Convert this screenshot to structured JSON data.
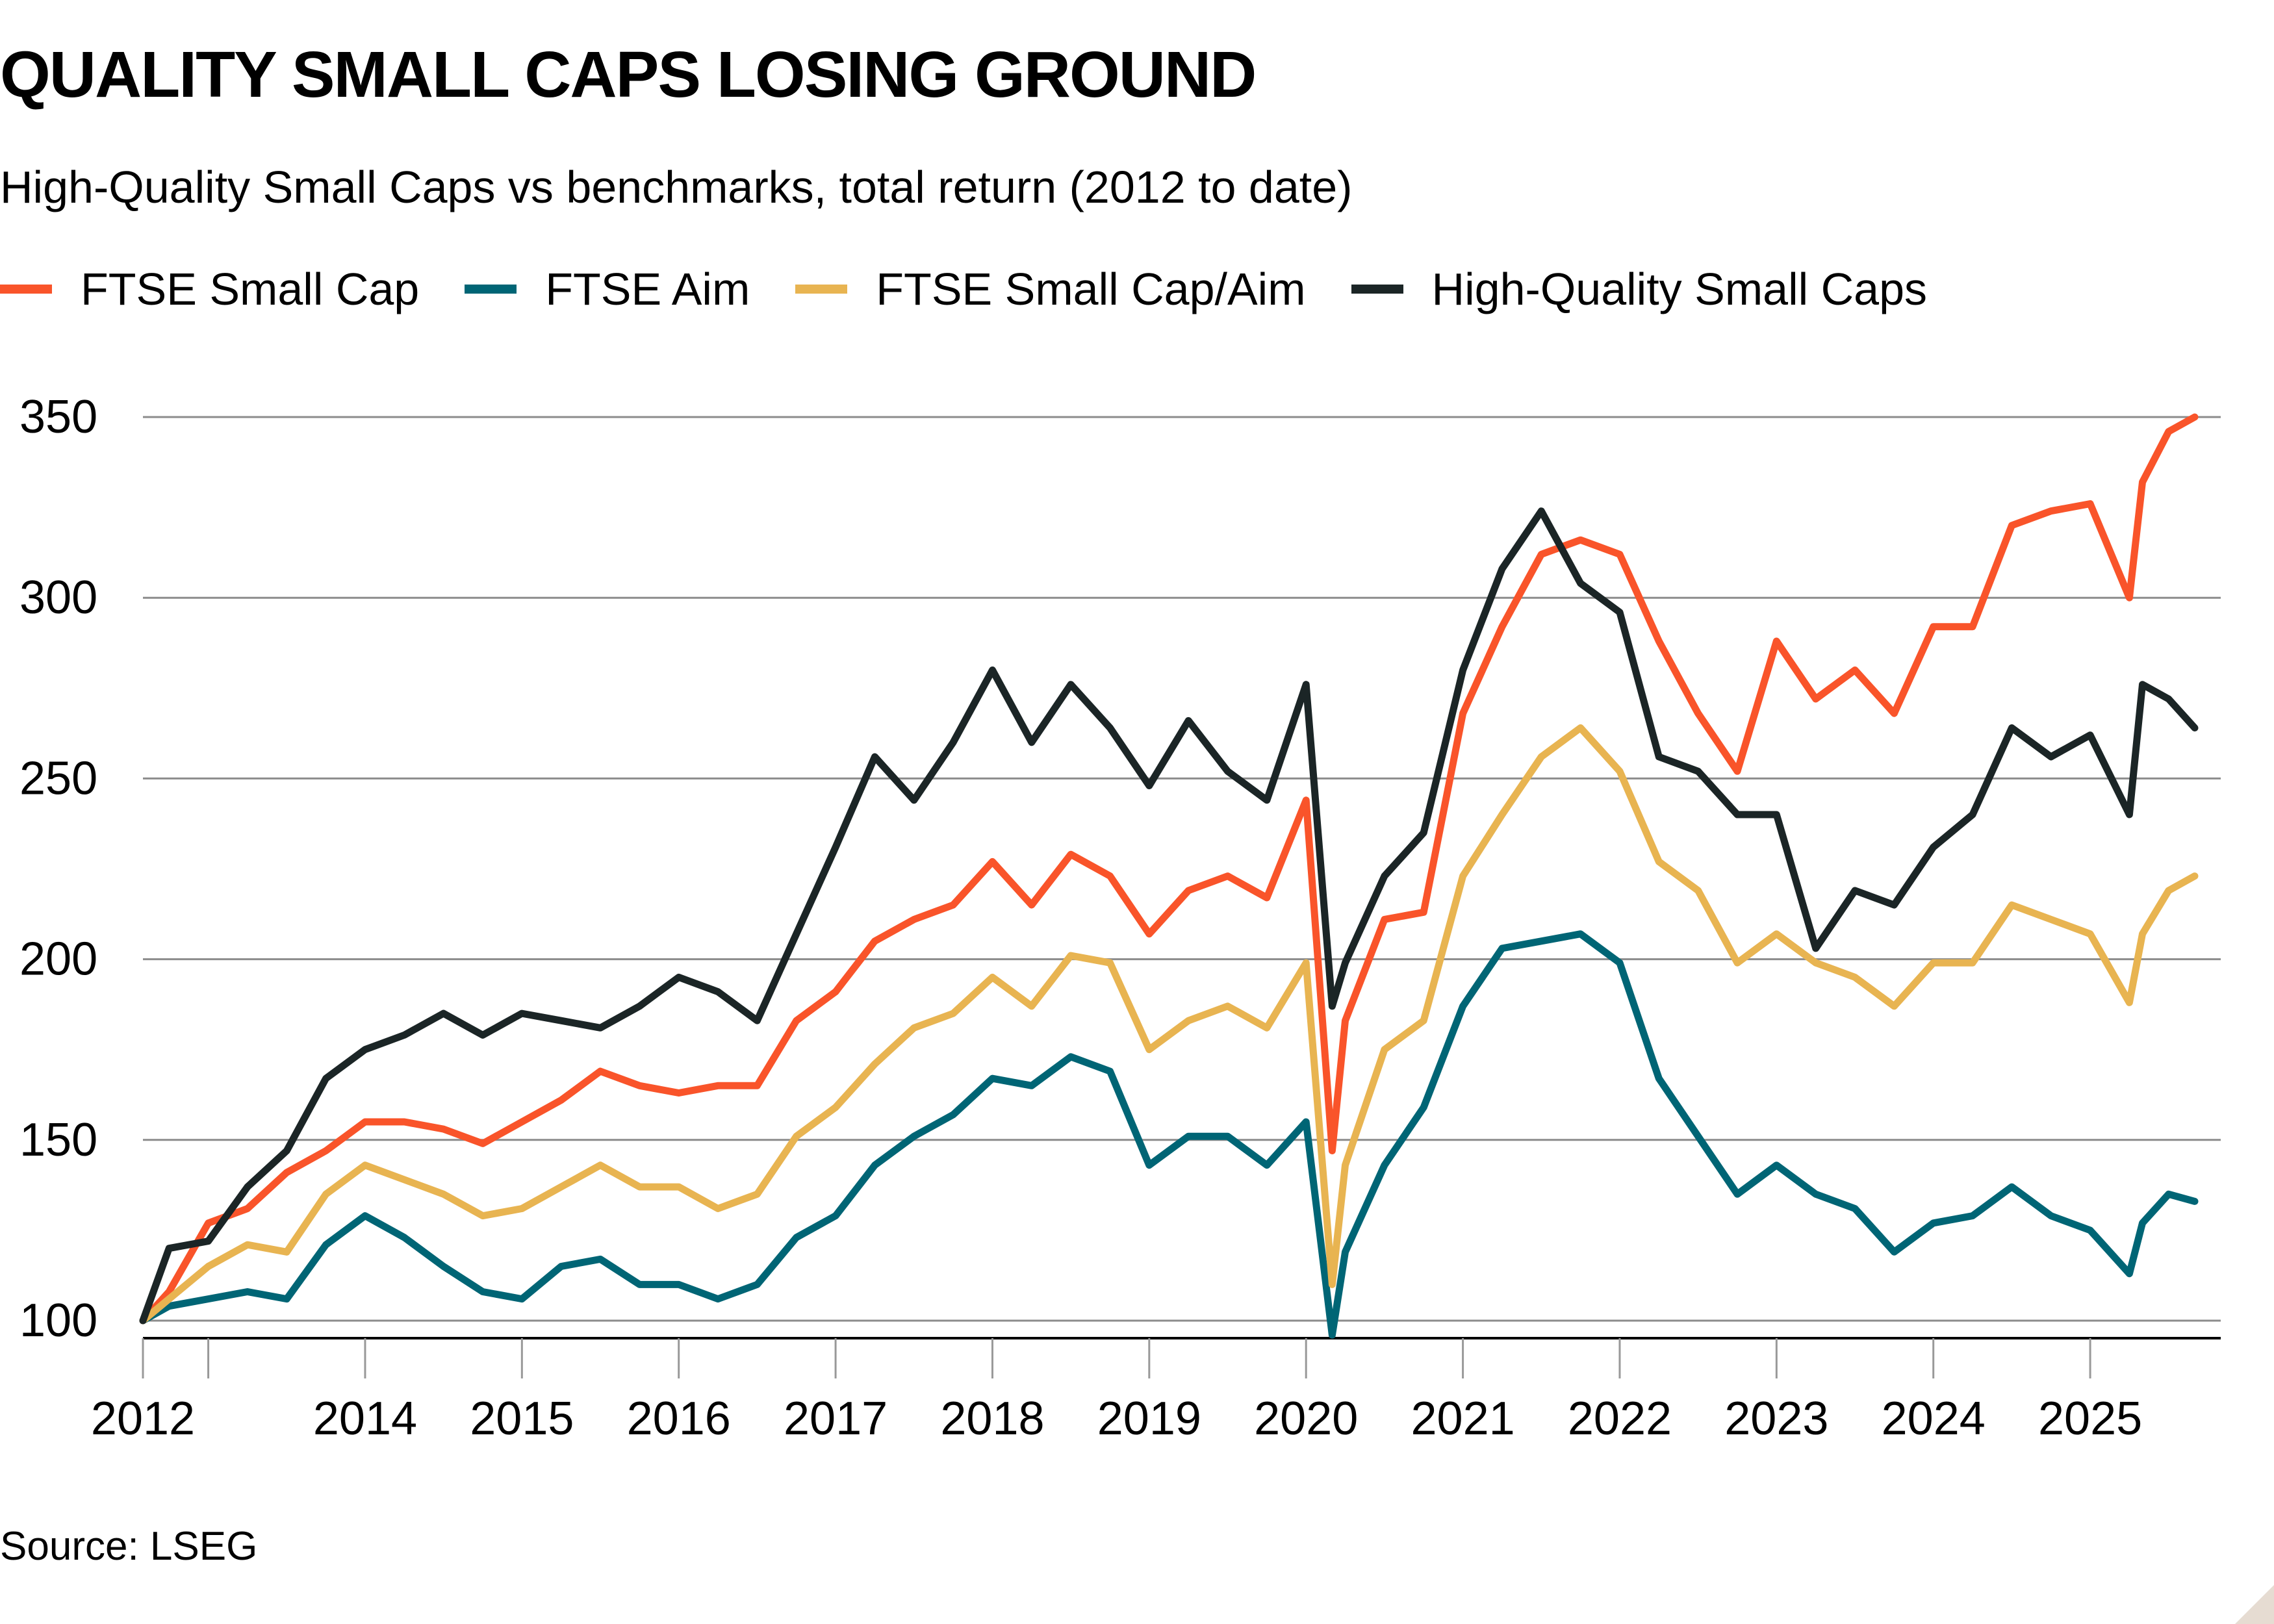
{
  "chart_data": {
    "type": "line",
    "title": "QUALITY SMALL CAPS LOSING GROUND",
    "subtitle": "High-Quality Small Caps vs benchmarks, total return (2012 to date)",
    "source": "Source: LSEG",
    "xlabel": "",
    "ylabel": "",
    "ylim": [
      100,
      350
    ],
    "yticks": [
      100,
      150,
      200,
      250,
      300,
      350
    ],
    "xticks": [
      {
        "date": "2012-08",
        "label": "2012"
      },
      {
        "date": "2013-01",
        "label": ""
      },
      {
        "date": "2014-01",
        "label": "2014"
      },
      {
        "date": "2015-01",
        "label": "2015"
      },
      {
        "date": "2016-01",
        "label": "2016"
      },
      {
        "date": "2017-01",
        "label": "2017"
      },
      {
        "date": "2018-01",
        "label": "2018"
      },
      {
        "date": "2019-01",
        "label": "2019"
      },
      {
        "date": "2020-01",
        "label": "2020"
      },
      {
        "date": "2021-01",
        "label": "2021"
      },
      {
        "date": "2022-01",
        "label": "2022"
      },
      {
        "date": "2023-01",
        "label": "2023"
      },
      {
        "date": "2024-01",
        "label": "2024"
      },
      {
        "date": "2025-01",
        "label": "2025"
      }
    ],
    "xlim": [
      "2012-08",
      "2025-09"
    ],
    "grid": true,
    "legend_position": "top",
    "dates": [
      "2012-08",
      "2012-10",
      "2013-01",
      "2013-04",
      "2013-07",
      "2013-10",
      "2014-01",
      "2014-04",
      "2014-07",
      "2014-10",
      "2015-01",
      "2015-04",
      "2015-07",
      "2015-10",
      "2016-01",
      "2016-04",
      "2016-07",
      "2016-10",
      "2017-01",
      "2017-04",
      "2017-07",
      "2017-10",
      "2018-01",
      "2018-04",
      "2018-07",
      "2018-10",
      "2019-01",
      "2019-04",
      "2019-07",
      "2019-10",
      "2020-01",
      "2020-03",
      "2020-04",
      "2020-07",
      "2020-10",
      "2021-01",
      "2021-04",
      "2021-07",
      "2021-10",
      "2022-01",
      "2022-04",
      "2022-07",
      "2022-10",
      "2023-01",
      "2023-04",
      "2023-07",
      "2023-10",
      "2024-01",
      "2024-04",
      "2024-07",
      "2024-10",
      "2025-01",
      "2025-04",
      "2025-05",
      "2025-07",
      "2025-09"
    ],
    "series": [
      {
        "name": "FTSE Small Cap",
        "color": "#f9542a",
        "values": [
          100,
          108,
          127,
          131,
          141,
          147,
          155,
          155,
          153,
          149,
          155,
          161,
          169,
          165,
          163,
          165,
          165,
          183,
          191,
          205,
          211,
          215,
          227,
          215,
          229,
          223,
          207,
          219,
          223,
          217,
          244,
          147,
          183,
          211,
          213,
          268,
          292,
          312,
          316,
          312,
          288,
          268,
          252,
          288,
          272,
          280,
          268,
          292,
          292,
          320,
          324,
          326,
          300,
          332,
          346,
          350
        ]
      },
      {
        "name": "FTSE Aim",
        "color": "#006575",
        "values": [
          100,
          104,
          106,
          108,
          106,
          121,
          129,
          123,
          115,
          108,
          106,
          115,
          117,
          110,
          110,
          106,
          110,
          123,
          129,
          143,
          151,
          157,
          167,
          165,
          173,
          169,
          143,
          151,
          151,
          143,
          155,
          96,
          119,
          143,
          159,
          187,
          203,
          205,
          207,
          199,
          167,
          151,
          135,
          143,
          135,
          131,
          119,
          127,
          129,
          137,
          129,
          125,
          113,
          127,
          135,
          133
        ]
      },
      {
        "name": "FTSE Small Cap/Aim",
        "color": "#e8b451",
        "values": [
          100,
          106,
          115,
          121,
          119,
          135,
          143,
          139,
          135,
          129,
          131,
          137,
          143,
          137,
          137,
          131,
          135,
          151,
          159,
          171,
          181,
          185,
          195,
          187,
          201,
          199,
          175,
          183,
          187,
          181,
          199,
          110,
          143,
          175,
          183,
          223,
          240,
          256,
          264,
          252,
          227,
          219,
          199,
          207,
          199,
          195,
          187,
          199,
          199,
          215,
          211,
          207,
          188,
          207,
          219,
          223
        ]
      },
      {
        "name": "High-Quality Small Caps",
        "color": "#1b2526",
        "values": [
          100,
          120,
          122,
          137,
          147,
          167,
          175,
          179,
          185,
          179,
          185,
          183,
          181,
          187,
          195,
          191,
          183,
          207,
          231,
          256,
          244,
          260,
          280,
          260,
          276,
          264,
          248,
          266,
          252,
          244,
          276,
          187,
          199,
          223,
          235,
          280,
          308,
          324,
          304,
          296,
          256,
          252,
          240,
          240,
          203,
          219,
          215,
          231,
          240,
          264,
          256,
          262,
          240,
          276,
          272,
          264
        ]
      }
    ]
  }
}
